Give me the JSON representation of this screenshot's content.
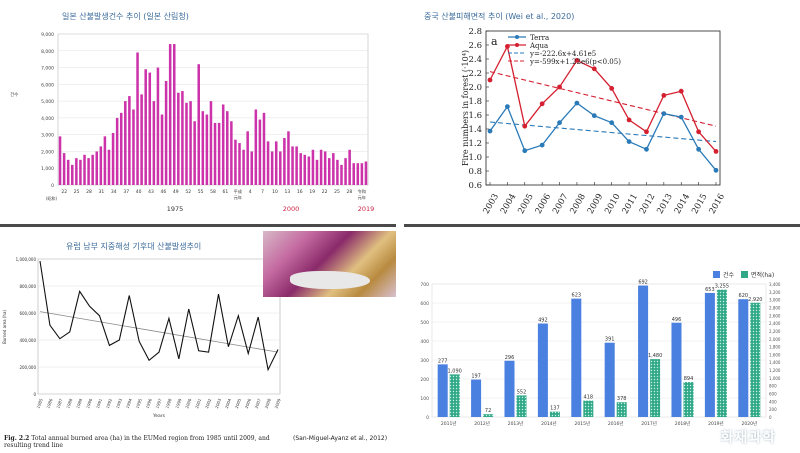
{
  "panels": {
    "p1": {
      "title": "일본 산불발생건수 추이 (일본 산림청)",
      "y_unit_label": "건수",
      "era_label_left": "(昭和)",
      "era_labels_bottom": [
        "1975",
        "2000",
        "2019"
      ],
      "accent_red": "#cc2244",
      "bar_color": "#cc33aa"
    },
    "p2": {
      "title": "중국 산불피해면적 추이 (Wei et al., 2020)",
      "panel_letter": "a",
      "legend": [
        "Terra",
        "Aqua",
        "y=-222.6x+4.61e5",
        "y=-599x+1.22e6(p<0.05)"
      ]
    },
    "p3": {
      "title": "유럽 남부 지중해성 기후대 산불발생추이",
      "caption_bold": "Fig. 2.2",
      "caption_text": "Total annual burned area (ha) in the EUMed region from 1985 until 2009, and resulting trend line",
      "citation": "(San-Miguel-Ayanz et al., 2012)",
      "x_label": "Years",
      "y_label": "Burned area (ha)"
    },
    "p4": {
      "legend_count": "건수",
      "legend_area": "면적(ha)",
      "watermark": "화재과학"
    }
  },
  "chart_data": [
    {
      "type": "bar",
      "title": "일본 산불발생건수 추이 (일본 산림청)",
      "ylabel": "건수",
      "ylim": [
        0,
        9000
      ],
      "yticks": [
        0,
        1000,
        2000,
        3000,
        4000,
        5000,
        6000,
        7000,
        8000,
        9000
      ],
      "xtick_labels": [
        "22",
        "25",
        "28",
        "31",
        "34",
        "37",
        "40",
        "43",
        "46",
        "49",
        "52",
        "55",
        "58",
        "61",
        "平成元年",
        "4",
        "7",
        "10",
        "13",
        "16",
        "19",
        "22",
        "25",
        "28",
        "令和元年"
      ],
      "values": [
        2900,
        1900,
        1500,
        1200,
        1600,
        1500,
        1800,
        1600,
        1800,
        2000,
        2300,
        2900,
        2100,
        3100,
        4000,
        4300,
        5000,
        5300,
        4500,
        7900,
        5400,
        6900,
        6700,
        5000,
        7000,
        4200,
        6200,
        8400,
        8400,
        5500,
        5600,
        4900,
        5000,
        3800,
        7200,
        4400,
        4200,
        5000,
        3700,
        3700,
        4800,
        4400,
        3800,
        2700,
        2500,
        2100,
        3200,
        2000,
        4500,
        3900,
        4300,
        2600,
        2000,
        2600,
        2000,
        2800,
        3200,
        2300,
        2300,
        1900,
        1800,
        1700,
        2100,
        1500,
        2100,
        2000,
        1600,
        1900,
        1500,
        1200,
        1600,
        2100,
        1300,
        1300,
        1300,
        1400
      ]
    },
    {
      "type": "line",
      "title": "중국 산불피해면적 추이 (Wei et al., 2020)",
      "ylabel": "Fire numbers in forest (·10⁴)",
      "ylim": [
        0.6,
        2.8
      ],
      "yticks": [
        0.6,
        0.8,
        1.0,
        1.2,
        1.4,
        1.6,
        1.8,
        2.0,
        2.2,
        2.4,
        2.6,
        2.8
      ],
      "x": [
        2003,
        2004,
        2005,
        2006,
        2007,
        2008,
        2009,
        2010,
        2011,
        2012,
        2013,
        2014,
        2015,
        2016
      ],
      "series": [
        {
          "name": "Terra",
          "color": "#2a7ab8",
          "values": [
            1.37,
            1.72,
            1.09,
            1.17,
            1.49,
            1.77,
            1.59,
            1.49,
            1.22,
            1.11,
            1.62,
            1.57,
            1.11,
            0.81
          ]
        },
        {
          "name": "Aqua",
          "color": "#d42030",
          "values": [
            2.1,
            2.58,
            1.44,
            1.76,
            2.0,
            2.38,
            2.26,
            1.98,
            1.53,
            1.36,
            1.88,
            1.94,
            1.36,
            1.08
          ]
        }
      ],
      "trendlines": [
        {
          "label": "y=-222.6x+4.61e5",
          "color": "#2a7ab8",
          "from": [
            2003,
            1.5
          ],
          "to": [
            2016,
            1.22
          ]
        },
        {
          "label": "y=-599x+1.22e6(p<0.05)",
          "color": "#d42030",
          "from": [
            2003,
            2.22
          ],
          "to": [
            2016,
            1.44
          ]
        }
      ]
    },
    {
      "type": "line",
      "title": "유럽 남부 지중해성 기후대 산불발생추이",
      "xlabel": "Years",
      "ylabel": "Burned area (ha)",
      "ylim": [
        0,
        1000000
      ],
      "yticks": [
        "0",
        "200,000",
        "400,000",
        "600,000",
        "800,000",
        "1,000,000"
      ],
      "x": [
        1985,
        1986,
        1987,
        1988,
        1989,
        1990,
        1991,
        1992,
        1993,
        1994,
        1995,
        1996,
        1997,
        1998,
        1999,
        2000,
        2001,
        2002,
        2003,
        2004,
        2005,
        2006,
        2007,
        2008,
        2009
      ],
      "values": [
        985000,
        510000,
        410000,
        460000,
        760000,
        650000,
        580000,
        360000,
        400000,
        730000,
        390000,
        250000,
        310000,
        560000,
        260000,
        630000,
        320000,
        310000,
        740000,
        350000,
        580000,
        300000,
        570000,
        180000,
        330000
      ],
      "trendline": {
        "from": [
          1985,
          610000
        ],
        "to": [
          2009,
          310000
        ]
      }
    },
    {
      "type": "bar",
      "categories": [
        "2011년",
        "2012년",
        "2013년",
        "2014년",
        "2015년",
        "2016년",
        "2017년",
        "2018년",
        "2019년",
        "2020년"
      ],
      "series": [
        {
          "name": "건수",
          "color": "#4a80e0",
          "axis": "left",
          "values": [
            277,
            197,
            296,
            492,
            623,
            391,
            692,
            496,
            653,
            620
          ]
        },
        {
          "name": "면적(ha)",
          "color": "#30a888",
          "axis": "right",
          "values": [
            1090,
            72,
            552,
            137,
            418,
            378,
            1480,
            894,
            3255,
            2920
          ]
        }
      ],
      "ylim_left": [
        0,
        700
      ],
      "yticks_left": [
        0,
        100,
        200,
        300,
        400,
        500,
        600,
        700
      ],
      "ylim_right": [
        0,
        3400
      ],
      "yticks_right": [
        "0",
        "200",
        "400",
        "600",
        "800",
        "1,000",
        "1,200",
        "1,400",
        "1,600",
        "1,800",
        "2,000",
        "2,200",
        "2,400",
        "2,600",
        "2,800",
        "3,000",
        "3,200",
        "3,400"
      ],
      "data_labels_left": [
        "277",
        "197",
        "296",
        "492",
        "623",
        "391",
        "692",
        "496",
        "653",
        "620"
      ],
      "data_labels_right": [
        "1,090",
        "72",
        "552",
        "137",
        "418",
        "378",
        "1,480",
        "894",
        "3,255",
        "2,920"
      ]
    }
  ]
}
